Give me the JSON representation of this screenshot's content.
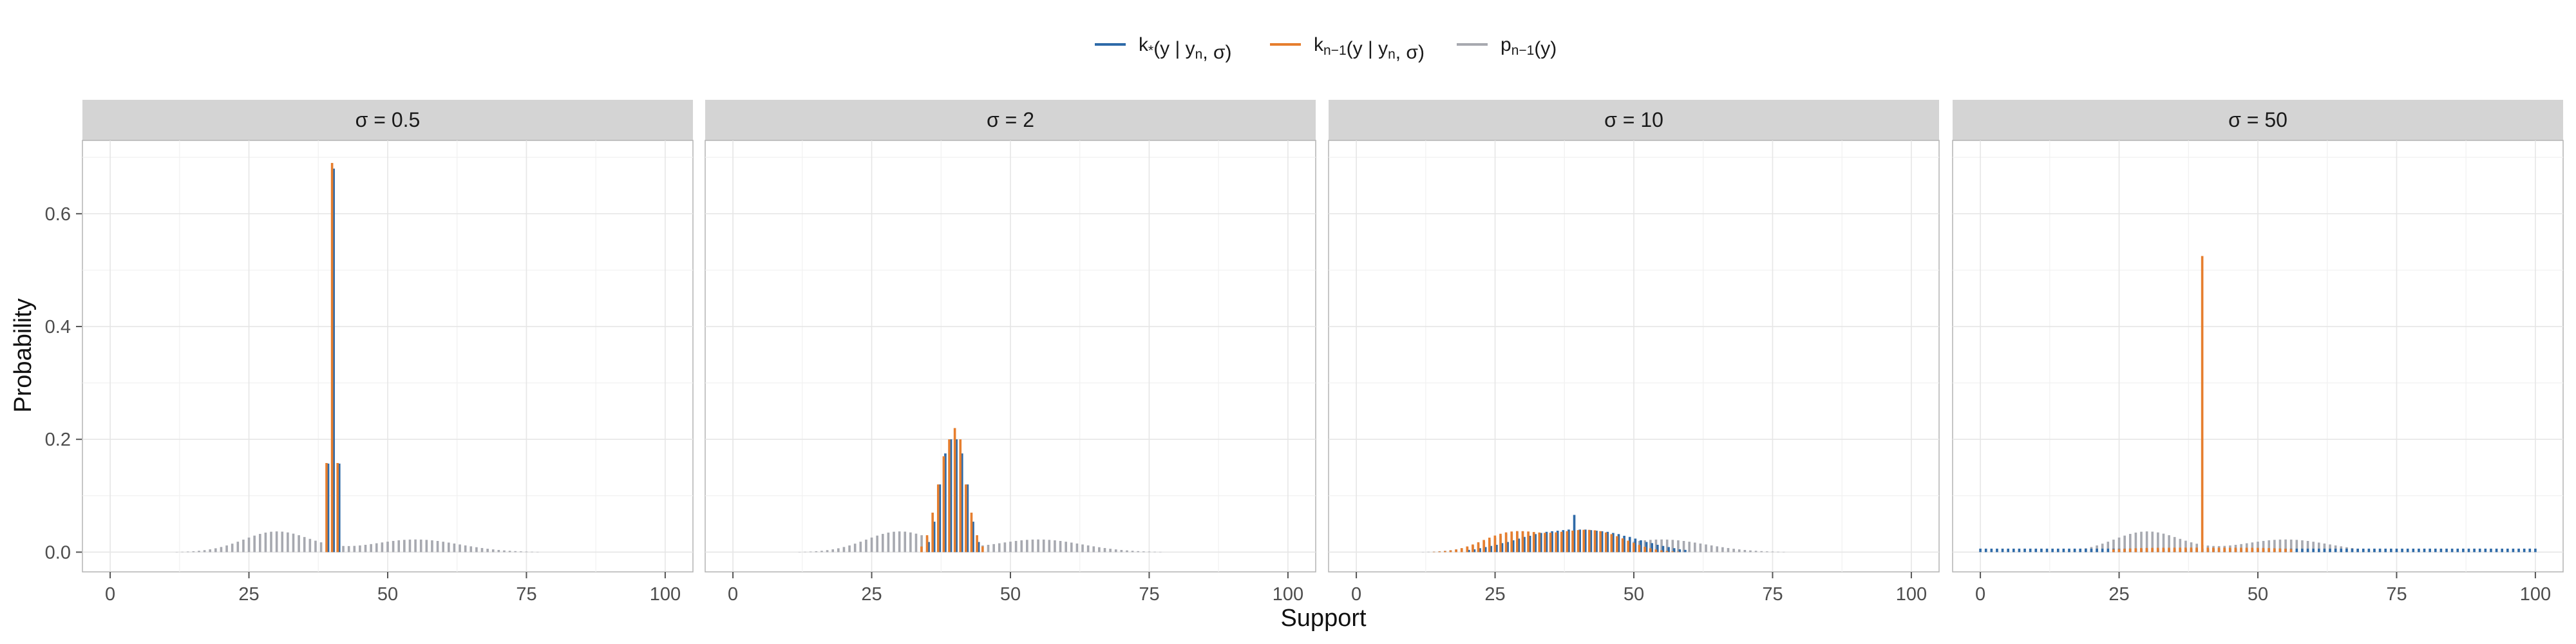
{
  "chart_data": {
    "type": "bar",
    "xlabel": "Support",
    "ylabel": "Probability",
    "xlim": [
      -5,
      105
    ],
    "ylim": [
      -0.035,
      0.73
    ],
    "x_ticks": [
      0,
      25,
      50,
      75,
      100
    ],
    "x_tick_labels": [
      "0",
      "25",
      "50",
      "75",
      "100"
    ],
    "y_ticks": [
      0.0,
      0.2,
      0.4,
      0.6
    ],
    "y_tick_labels": [
      "0.0",
      "0.2",
      "0.4",
      "0.6"
    ],
    "grid": true,
    "legend_position": "top",
    "legend": [
      {
        "key": "kstar",
        "main": "k",
        "sub": "*",
        "rest": "(y  |  y",
        "sub2": "n",
        "tail": ", σ)",
        "color": "#2e6aa8"
      },
      {
        "key": "knm1",
        "main": "k",
        "sub": "n−1",
        "rest": "(y  |  y",
        "sub2": "n",
        "tail": ", σ)",
        "color": "#e67e2e"
      },
      {
        "key": "pnm1",
        "main": "p",
        "sub": "n−1",
        "rest": "(y)",
        "sub2": "",
        "tail": "",
        "color": "#a7a9b0"
      }
    ],
    "y_observed": 40,
    "series_colors": {
      "k_star": "#2e6aa8",
      "k_nm1": "#e67e2e",
      "p_nm1": "#a7a9b0"
    },
    "panels": [
      {
        "title": "σ = 0.5",
        "k_nm1": [
          {
            "x": 39,
            "y": 0.158
          },
          {
            "x": 40,
            "y": 0.69
          },
          {
            "x": 41,
            "y": 0.158
          }
        ],
        "k_star": [
          {
            "x": 39,
            "y": 0.157
          },
          {
            "x": 40,
            "y": 0.68
          },
          {
            "x": 41,
            "y": 0.157
          }
        ],
        "k_star_floor": 0
      },
      {
        "title": "σ = 2",
        "k_nm1": [
          {
            "x": 34,
            "y": 0.01
          },
          {
            "x": 35,
            "y": 0.03
          },
          {
            "x": 36,
            "y": 0.07
          },
          {
            "x": 37,
            "y": 0.12
          },
          {
            "x": 38,
            "y": 0.17
          },
          {
            "x": 39,
            "y": 0.2
          },
          {
            "x": 40,
            "y": 0.22
          },
          {
            "x": 41,
            "y": 0.2
          },
          {
            "x": 42,
            "y": 0.12
          },
          {
            "x": 43,
            "y": 0.07
          },
          {
            "x": 44,
            "y": 0.03
          },
          {
            "x": 45,
            "y": 0.01
          }
        ],
        "k_star": [
          {
            "x": 35,
            "y": 0.018
          },
          {
            "x": 36,
            "y": 0.054
          },
          {
            "x": 37,
            "y": 0.12
          },
          {
            "x": 38,
            "y": 0.175
          },
          {
            "x": 39,
            "y": 0.2
          },
          {
            "x": 40,
            "y": 0.2
          },
          {
            "x": 41,
            "y": 0.175
          },
          {
            "x": 42,
            "y": 0.12
          },
          {
            "x": 43,
            "y": 0.054
          },
          {
            "x": 44,
            "y": 0.018
          }
        ],
        "k_star_floor": 0
      },
      {
        "title": "σ = 10",
        "k_nm1": [
          {
            "x": 14,
            "y": 0.0006
          },
          {
            "x": 15,
            "y": 0.0011
          },
          {
            "x": 16,
            "y": 0.0019
          },
          {
            "x": 17,
            "y": 0.0031
          },
          {
            "x": 18,
            "y": 0.0048
          },
          {
            "x": 19,
            "y": 0.0071
          },
          {
            "x": 20,
            "y": 0.0101
          },
          {
            "x": 21,
            "y": 0.0136
          },
          {
            "x": 22,
            "y": 0.0175
          },
          {
            "x": 23,
            "y": 0.0216
          },
          {
            "x": 24,
            "y": 0.0257
          },
          {
            "x": 25,
            "y": 0.0294
          },
          {
            "x": 26,
            "y": 0.0326
          },
          {
            "x": 27,
            "y": 0.035
          },
          {
            "x": 28,
            "y": 0.0366
          },
          {
            "x": 29,
            "y": 0.0373
          },
          {
            "x": 30,
            "y": 0.0372
          },
          {
            "x": 31,
            "y": 0.0366
          },
          {
            "x": 32,
            "y": 0.0357
          },
          {
            "x": 33,
            "y": 0.0348
          },
          {
            "x": 34,
            "y": 0.0342
          },
          {
            "x": 35,
            "y": 0.0345
          },
          {
            "x": 36,
            "y": 0.0351
          },
          {
            "x": 37,
            "y": 0.0361
          },
          {
            "x": 38,
            "y": 0.0372
          },
          {
            "x": 39,
            "y": 0.0382
          },
          {
            "x": 40,
            "y": 0.0391
          },
          {
            "x": 41,
            "y": 0.0396
          },
          {
            "x": 42,
            "y": 0.0395
          },
          {
            "x": 43,
            "y": 0.0387
          },
          {
            "x": 44,
            "y": 0.0372
          },
          {
            "x": 45,
            "y": 0.0349
          },
          {
            "x": 46,
            "y": 0.0319
          },
          {
            "x": 47,
            "y": 0.0283
          },
          {
            "x": 48,
            "y": 0.0244
          },
          {
            "x": 49,
            "y": 0.0203
          },
          {
            "x": 50,
            "y": 0.0163
          },
          {
            "x": 51,
            "y": 0.0127
          },
          {
            "x": 52,
            "y": 0.0095
          },
          {
            "x": 53,
            "y": 0.0068
          },
          {
            "x": 54,
            "y": 0.0047
          },
          {
            "x": 55,
            "y": 0.0031
          },
          {
            "x": 56,
            "y": 0.002
          },
          {
            "x": 57,
            "y": 0.0012
          },
          {
            "x": 58,
            "y": 0.0007
          }
        ],
        "k_star": [
          {
            "x": 20,
            "y": 0.004
          },
          {
            "x": 21,
            "y": 0.005
          },
          {
            "x": 22,
            "y": 0.007
          },
          {
            "x": 23,
            "y": 0.009
          },
          {
            "x": 24,
            "y": 0.011
          },
          {
            "x": 25,
            "y": 0.013
          },
          {
            "x": 26,
            "y": 0.016
          },
          {
            "x": 27,
            "y": 0.018
          },
          {
            "x": 28,
            "y": 0.021
          },
          {
            "x": 29,
            "y": 0.024
          },
          {
            "x": 30,
            "y": 0.027
          },
          {
            "x": 31,
            "y": 0.029
          },
          {
            "x": 32,
            "y": 0.032
          },
          {
            "x": 33,
            "y": 0.034
          },
          {
            "x": 34,
            "y": 0.036
          },
          {
            "x": 35,
            "y": 0.037
          },
          {
            "x": 36,
            "y": 0.038
          },
          {
            "x": 37,
            "y": 0.039
          },
          {
            "x": 38,
            "y": 0.04
          },
          {
            "x": 39,
            "y": 0.066
          },
          {
            "x": 40,
            "y": 0.04
          },
          {
            "x": 41,
            "y": 0.04
          },
          {
            "x": 42,
            "y": 0.039
          },
          {
            "x": 43,
            "y": 0.038
          },
          {
            "x": 44,
            "y": 0.037
          },
          {
            "x": 45,
            "y": 0.036
          },
          {
            "x": 46,
            "y": 0.034
          },
          {
            "x": 47,
            "y": 0.032
          },
          {
            "x": 48,
            "y": 0.029
          },
          {
            "x": 49,
            "y": 0.027
          },
          {
            "x": 50,
            "y": 0.024
          },
          {
            "x": 51,
            "y": 0.021
          },
          {
            "x": 52,
            "y": 0.018
          },
          {
            "x": 53,
            "y": 0.016
          },
          {
            "x": 54,
            "y": 0.013
          },
          {
            "x": 55,
            "y": 0.011
          },
          {
            "x": 56,
            "y": 0.009
          },
          {
            "x": 57,
            "y": 0.007
          },
          {
            "x": 58,
            "y": 0.005
          },
          {
            "x": 59,
            "y": 0.004
          }
        ],
        "k_star_floor": 0
      },
      {
        "title": "σ = 50",
        "k_nm1": [
          {
            "x": 24,
            "y": 0.0052
          },
          {
            "x": 25,
            "y": 0.0056
          },
          {
            "x": 26,
            "y": 0.0061
          },
          {
            "x": 27,
            "y": 0.0065
          },
          {
            "x": 28,
            "y": 0.0069
          },
          {
            "x": 29,
            "y": 0.0072
          },
          {
            "x": 30,
            "y": 0.0074
          },
          {
            "x": 31,
            "y": 0.0076
          },
          {
            "x": 32,
            "y": 0.0077
          },
          {
            "x": 33,
            "y": 0.0078
          },
          {
            "x": 34,
            "y": 0.0078
          },
          {
            "x": 35,
            "y": 0.0079
          },
          {
            "x": 36,
            "y": 0.0079
          },
          {
            "x": 37,
            "y": 0.008
          },
          {
            "x": 38,
            "y": 0.008
          },
          {
            "x": 39,
            "y": 0.008
          },
          {
            "x": 40,
            "y": 0.525
          },
          {
            "x": 41,
            "y": 0.008
          },
          {
            "x": 42,
            "y": 0.008
          },
          {
            "x": 43,
            "y": 0.008
          },
          {
            "x": 44,
            "y": 0.008
          },
          {
            "x": 45,
            "y": 0.0079
          },
          {
            "x": 46,
            "y": 0.0079
          },
          {
            "x": 47,
            "y": 0.0078
          },
          {
            "x": 48,
            "y": 0.0078
          },
          {
            "x": 49,
            "y": 0.0077
          },
          {
            "x": 50,
            "y": 0.0076
          },
          {
            "x": 51,
            "y": 0.0074
          },
          {
            "x": 52,
            "y": 0.0072
          },
          {
            "x": 53,
            "y": 0.0069
          },
          {
            "x": 54,
            "y": 0.0065
          },
          {
            "x": 55,
            "y": 0.0061
          },
          {
            "x": 56,
            "y": 0.0056
          }
        ],
        "k_star": [],
        "k_star_floor": 0.0062
      }
    ],
    "p_nm1_mixture": [
      {
        "weight": 0.55,
        "mean": 30,
        "sd": 6
      },
      {
        "weight": 0.45,
        "mean": 55,
        "sd": 8
      }
    ],
    "support": [
      0,
      100
    ]
  }
}
